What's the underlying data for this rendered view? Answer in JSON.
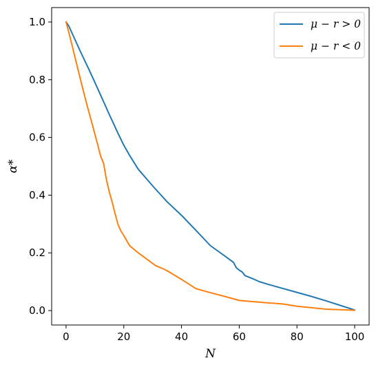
{
  "chart_data": {
    "type": "line",
    "xlabel": "N",
    "ylabel": "α*",
    "xlim": [
      -5,
      105
    ],
    "ylim": [
      -0.05,
      1.05
    ],
    "xticks": [
      0,
      20,
      40,
      60,
      80,
      100
    ],
    "yticks": [
      0.0,
      0.2,
      0.4,
      0.6,
      0.8,
      1.0
    ],
    "xtick_labels": [
      "0",
      "20",
      "40",
      "60",
      "80",
      "100"
    ],
    "ytick_labels": [
      "0.0",
      "0.2",
      "0.4",
      "0.6",
      "0.8",
      "1.0"
    ],
    "grid": false,
    "legend_position": "top-right",
    "series": [
      {
        "name": "μ − r > 0",
        "color": "#1f77b4",
        "x": [
          0,
          1,
          2,
          5,
          8,
          10,
          12,
          15,
          18,
          20,
          22,
          25,
          30,
          35,
          40,
          45,
          50,
          55,
          58,
          59,
          60,
          61,
          62,
          65,
          67,
          70,
          75,
          80,
          85,
          90,
          95,
          100
        ],
        "y": [
          1.0,
          0.985,
          0.963,
          0.897,
          0.834,
          0.79,
          0.746,
          0.679,
          0.614,
          0.573,
          0.538,
          0.49,
          0.432,
          0.377,
          0.33,
          0.278,
          0.225,
          0.189,
          0.167,
          0.148,
          0.14,
          0.134,
          0.121,
          0.109,
          0.1,
          0.091,
          0.077,
          0.063,
          0.049,
          0.034,
          0.018,
          0.002
        ]
      },
      {
        "name": "μ − r < 0",
        "color": "#ff7f0e",
        "x": [
          0,
          1,
          2,
          3,
          5,
          7,
          9,
          11,
          12,
          13,
          14,
          15,
          16,
          17,
          18,
          19,
          20,
          22,
          25,
          28,
          31,
          34,
          35,
          40,
          45,
          50,
          55,
          60,
          67,
          75,
          80,
          90,
          100
        ],
        "y": [
          1.0,
          0.962,
          0.922,
          0.881,
          0.8,
          0.721,
          0.648,
          0.573,
          0.534,
          0.51,
          0.453,
          0.41,
          0.375,
          0.335,
          0.298,
          0.276,
          0.26,
          0.225,
          0.2,
          0.178,
          0.156,
          0.143,
          0.138,
          0.108,
          0.076,
          0.062,
          0.049,
          0.035,
          0.029,
          0.023,
          0.015,
          0.005,
          0.001
        ]
      }
    ]
  }
}
